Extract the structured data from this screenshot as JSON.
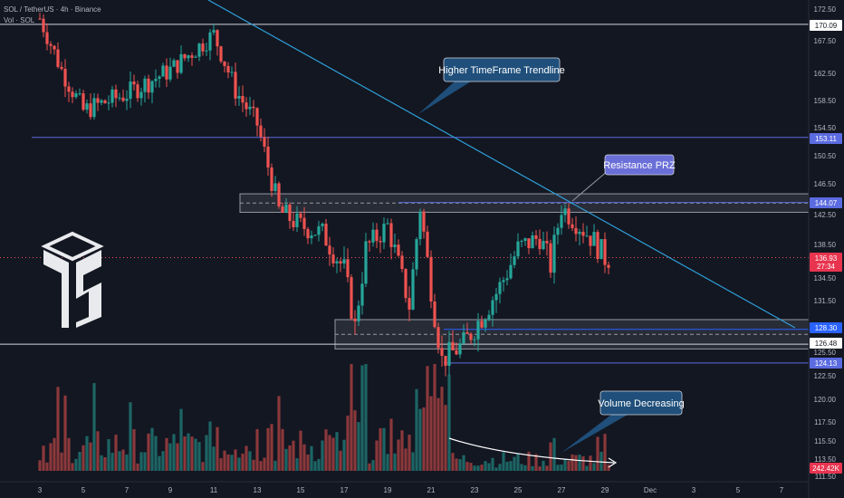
{
  "header": {
    "symbol_line": "SOL / TetherUS · 4h · Binance",
    "volume_line": "Vol · SOL"
  },
  "price_axis": {
    "ticks": [
      "172.50",
      "167.50",
      "162.50",
      "158.50",
      "154.50",
      "150.50",
      "146.50",
      "142.50",
      "138.50",
      "134.50",
      "131.50",
      "128.50",
      "125.50",
      "122.50",
      "120.00",
      "117.50",
      "115.50",
      "113.50",
      "111.50"
    ],
    "tags": [
      {
        "label": "170.09",
        "color": "#ffffff",
        "text_color": "#131722"
      },
      {
        "label": "153.11",
        "color": "#5b6be0",
        "text_color": "#ffffff"
      },
      {
        "label": "144.07",
        "color": "#5b6be0",
        "text_color": "#ffffff"
      },
      {
        "label": "136.93",
        "color": "#e8344f",
        "text_color": "#ffffff"
      },
      {
        "label": "27:34",
        "color": "#e8344f",
        "text_color": "#ffffff"
      },
      {
        "label": "128.30",
        "color": "#2962ff",
        "text_color": "#ffffff"
      },
      {
        "label": "126.48",
        "color": "#ffffff",
        "text_color": "#131722"
      },
      {
        "label": "124.13",
        "color": "#5b6be0",
        "text_color": "#ffffff"
      },
      {
        "label": "242.42K",
        "color": "#e8344f",
        "text_color": "#ffffff"
      }
    ]
  },
  "time_axis": {
    "labels": [
      "3",
      "5",
      "7",
      "9",
      "11",
      "13",
      "15",
      "17",
      "19",
      "21",
      "23",
      "25",
      "27",
      "29",
      "Dec",
      "3",
      "5",
      "7"
    ]
  },
  "annotations": {
    "trendline_callout": "Higher TimeFrame Trendline",
    "prz_callout": "Resistance PRZ",
    "volume_callout": "Volume Decreasing"
  },
  "colors": {
    "background": "#131722",
    "bull": "#26a69a",
    "bear": "#ef5350",
    "trendline": "#2e9fd8",
    "horizontal_level": "#5b6be0",
    "callout_dark": "#1f4f7a",
    "callout_purple": "#6a6fd8"
  },
  "chart_data": {
    "type": "candlestick",
    "symbol": "SOL / TetherUS",
    "timeframe": "4h",
    "exchange": "Binance",
    "levels": [
      170.09,
      153.11,
      144.07,
      128.3,
      126.48,
      124.13
    ],
    "last_price": 136.93,
    "countdown": "27:34",
    "last_volume": "242.42K",
    "resistance_zone": [
      142.8,
      145.2
    ],
    "support_zone": [
      125.9,
      129.4
    ],
    "price_keypoints": [
      {
        "x": "3",
        "price": 171.0
      },
      {
        "x": "4",
        "price": 163.0
      },
      {
        "x": "5",
        "price": 157.0
      },
      {
        "x": "7",
        "price": 159.5
      },
      {
        "x": "9",
        "price": 163.0
      },
      {
        "x": "11",
        "price": 168.5
      },
      {
        "x": "12",
        "price": 160.0
      },
      {
        "x": "13",
        "price": 155.0
      },
      {
        "x": "14",
        "price": 143.0
      },
      {
        "x": "15",
        "price": 141.0
      },
      {
        "x": "16",
        "price": 140.0
      },
      {
        "x": "17",
        "price": 135.5
      },
      {
        "x": "17.5",
        "price": 128.5
      },
      {
        "x": "18",
        "price": 138.0
      },
      {
        "x": "19",
        "price": 141.0
      },
      {
        "x": "20",
        "price": 131.0
      },
      {
        "x": "20.5",
        "price": 143.5
      },
      {
        "x": "21",
        "price": 133.0
      },
      {
        "x": "21.5",
        "price": 124.5
      },
      {
        "x": "22.5",
        "price": 126.5
      },
      {
        "x": "24",
        "price": 132.5
      },
      {
        "x": "25",
        "price": 138.0
      },
      {
        "x": "26",
        "price": 139.5
      },
      {
        "x": "26.5",
        "price": 136.0
      },
      {
        "x": "27",
        "price": 143.5
      },
      {
        "x": "27.5",
        "price": 142.0
      },
      {
        "x": "28",
        "price": 140.5
      },
      {
        "x": "28.5",
        "price": 139.0
      },
      {
        "x": "29",
        "price": 136.93
      }
    ]
  }
}
